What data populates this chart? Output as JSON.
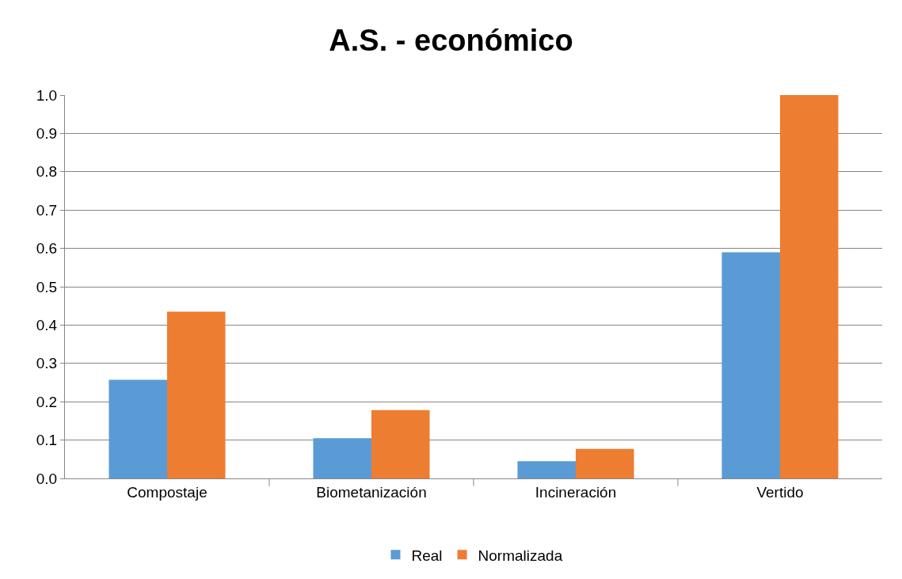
{
  "chart_data": {
    "type": "bar",
    "title": "A.S. - económico",
    "categories": [
      "Compostaje",
      "Biometanización",
      "Incineración",
      "Vertido"
    ],
    "series": [
      {
        "name": "Real",
        "color": "#5b9bd5",
        "values": [
          0.257,
          0.105,
          0.045,
          0.59
        ]
      },
      {
        "name": "Normalizada",
        "color": "#ed7d31",
        "values": [
          0.435,
          0.178,
          0.077,
          1.0
        ]
      }
    ],
    "ylim": [
      0,
      1
    ],
    "yticks": [
      {
        "value": 0,
        "label": "0.0"
      },
      {
        "value": 0.1,
        "label": "0.1"
      },
      {
        "value": 0.2,
        "label": "0.2"
      },
      {
        "value": 0.3,
        "label": "0.3"
      },
      {
        "value": 0.4,
        "label": "0.4"
      },
      {
        "value": 0.5,
        "label": "0.5"
      },
      {
        "value": 0.6,
        "label": "0.6"
      },
      {
        "value": 0.7,
        "label": "0.7"
      },
      {
        "value": 0.8,
        "label": "0.8"
      },
      {
        "value": 0.9,
        "label": "0.9"
      },
      {
        "value": 1,
        "label": "1.0"
      }
    ],
    "grid": "y",
    "legend": "bottom"
  }
}
